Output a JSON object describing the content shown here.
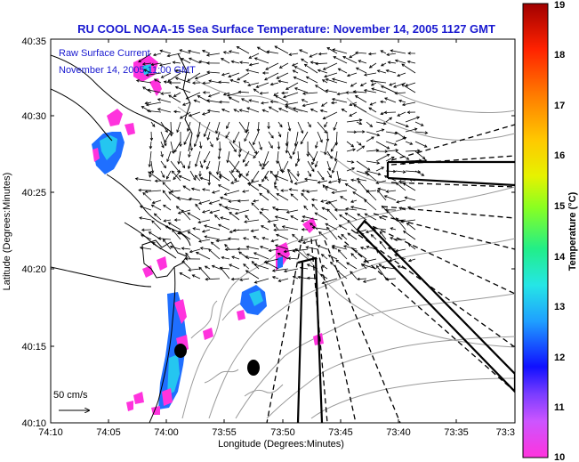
{
  "title": "RU COOL  NOAA-15  Sea Surface Temperature:  November 14, 2005 1127 GMT",
  "legend": {
    "line1": "Raw Surface Current",
    "line2": "November 14, 2005 11:00 GMT"
  },
  "axes": {
    "xlabel": "Longitude (Degrees:Minutes)",
    "ylabel": "Latitude (Degrees:Minutes)",
    "x_ticks": [
      "74:10",
      "74:05",
      "74:00",
      "73:55",
      "73:50",
      "73:45",
      "73:40",
      "73:35",
      "73:3"
    ],
    "y_ticks": [
      "40:35",
      "40:30",
      "40:25",
      "40:20",
      "40:15",
      "40:10"
    ]
  },
  "scale_label": "50 cm/s",
  "colorbar": {
    "label": "Temperature (°C)",
    "ticks": [
      "19",
      "18",
      "17",
      "16",
      "15",
      "14",
      "13",
      "12",
      "11",
      "10"
    ],
    "min": 10,
    "max": 19
  },
  "colors": {
    "title": "#1a1ad0",
    "land_outline": "#000000",
    "bathymetry": "#9a9a9a",
    "vectors": "#000000"
  }
}
